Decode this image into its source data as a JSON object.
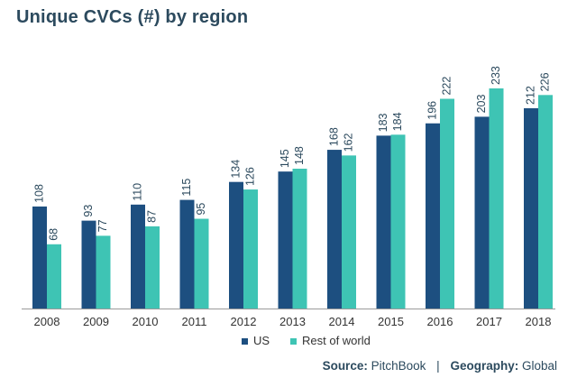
{
  "title": "Unique CVCs (#) by region",
  "source": {
    "source_label": "Source:",
    "source_value": "PitchBook",
    "separator": "|",
    "geo_label": "Geography:",
    "geo_value": "Global"
  },
  "colors": {
    "us": "#1d4f80",
    "row": "#3ec4b4",
    "axis": "#9a9a9a",
    "text": "#2c4a5e"
  },
  "chart_data": {
    "type": "bar",
    "title": "Unique CVCs (#) by region",
    "categories": [
      "2008",
      "2009",
      "2010",
      "2011",
      "2012",
      "2013",
      "2014",
      "2015",
      "2016",
      "2017",
      "2018"
    ],
    "series": [
      {
        "name": "US",
        "values": [
          108,
          93,
          110,
          115,
          134,
          145,
          168,
          183,
          196,
          203,
          212
        ]
      },
      {
        "name": "Rest of world",
        "values": [
          68,
          77,
          87,
          95,
          126,
          148,
          162,
          184,
          222,
          233,
          226
        ]
      }
    ],
    "ylim": [
      0,
      233
    ],
    "grid": false,
    "legend": "bottom-center"
  }
}
